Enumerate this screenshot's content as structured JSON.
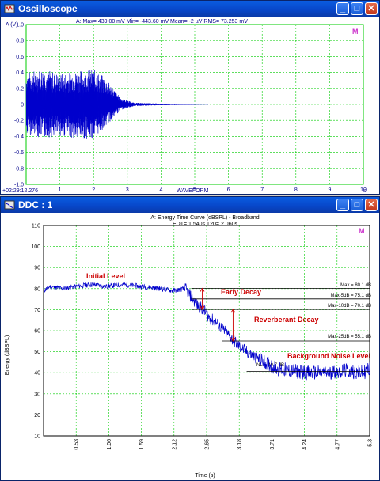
{
  "osc": {
    "title": "Oscilloscope",
    "header": "A: Max=      439.00 mV  Min=    -443.60 mV  Mean=           -2  µV  RMS=      73.253 mV",
    "yaxis": "A (V)",
    "marker": "M",
    "timestamp": "+02:29:12.276",
    "xlabel": "WAVEFORM",
    "xunit": "s",
    "yticks": [
      "1.0",
      "0.8",
      "0.6",
      "0.4",
      "0.2",
      "0",
      "-0.2",
      "-0.4",
      "-0.6",
      "-0.8",
      "-1.0"
    ],
    "xticks": [
      "1",
      "2",
      "3",
      "4",
      "5",
      "6",
      "7",
      "8",
      "9",
      "10"
    ]
  },
  "ddc": {
    "title": "DDC : 1",
    "chart_title": "A: Energy Time Curve (dBSPL) - Broadband",
    "subtitle": "EDT= 1.540s   T20= 2.060s",
    "marker": "M",
    "ylabel": "Energy (dBSPL)",
    "xlabel": "Time (s)",
    "yticks": [
      "110",
      "100",
      "90",
      "80",
      "70",
      "60",
      "50",
      "40",
      "30",
      "20",
      "10"
    ],
    "xticks": [
      "0.53",
      "1.06",
      "1.59",
      "2.12",
      "2.65",
      "3.18",
      "3.71",
      "4.24",
      "4.77",
      "5.3"
    ],
    "annotations": {
      "initial": "Initial Level",
      "early": "Early Decay",
      "reverb": "Reverberant Decay",
      "noise": "Background Noise Level"
    },
    "levels": {
      "max": "Max =  80.1 dB",
      "max5": "Max-5dB =  75.1 dB",
      "max10": "Max-10dB =  70.1 dB",
      "max25": "Max-25dB =  55.1 dB",
      "nl": "NL =  40.7 dB"
    }
  },
  "colors": {
    "trace": "#0000cc",
    "grid": "#00cc00",
    "annot": "#cc0000",
    "level": "#000000"
  },
  "chart_data": [
    {
      "type": "line",
      "title": "",
      "xlabel": "WAVEFORM",
      "ylabel": "A (V)",
      "xlim": [
        0,
        10
      ],
      "ylim": [
        -1.0,
        1.0
      ],
      "grid": true,
      "series": [
        {
          "name": "",
          "envelope": {
            "x": [
              0,
              0.5,
              1.0,
              1.5,
              2.0,
              2.3,
              2.5,
              2.8,
              3.2,
              4.0,
              5.4
            ],
            "upper": [
              0.4,
              0.45,
              0.38,
              0.42,
              0.44,
              0.35,
              0.25,
              0.08,
              0.02,
              0.01,
              0.0
            ],
            "lower": [
              -0.38,
              -0.42,
              -0.4,
              -0.44,
              -0.43,
              -0.3,
              -0.22,
              -0.07,
              -0.02,
              -0.01,
              0.0
            ]
          }
        }
      ]
    },
    {
      "type": "line",
      "title": "A: Energy Time Curve (dBSPL) - Broadband",
      "xlabel": "Time (s)",
      "ylabel": "Energy (dBSPL)",
      "xlim": [
        0,
        5.3
      ],
      "ylim": [
        10,
        110
      ],
      "grid": true,
      "series": [
        {
          "name": "",
          "x": [
            0,
            0.1,
            0.3,
            0.5,
            0.8,
            1.0,
            1.3,
            1.6,
            1.9,
            2.1,
            2.3,
            2.4,
            2.5,
            2.6,
            2.7,
            2.8,
            3.0,
            3.2,
            3.4,
            3.6,
            3.8,
            4.0,
            4.3,
            4.6,
            4.9,
            5.2,
            5.3
          ],
          "y": [
            79,
            81,
            80,
            81,
            82,
            81,
            82,
            81,
            80,
            79,
            80,
            76,
            72,
            70,
            66,
            64,
            58,
            52,
            48,
            45,
            42,
            41,
            40,
            40,
            41,
            40,
            42
          ]
        }
      ],
      "reference_levels_db": [
        80.1,
        75.1,
        70.1,
        55.1,
        40.7
      ]
    }
  ]
}
